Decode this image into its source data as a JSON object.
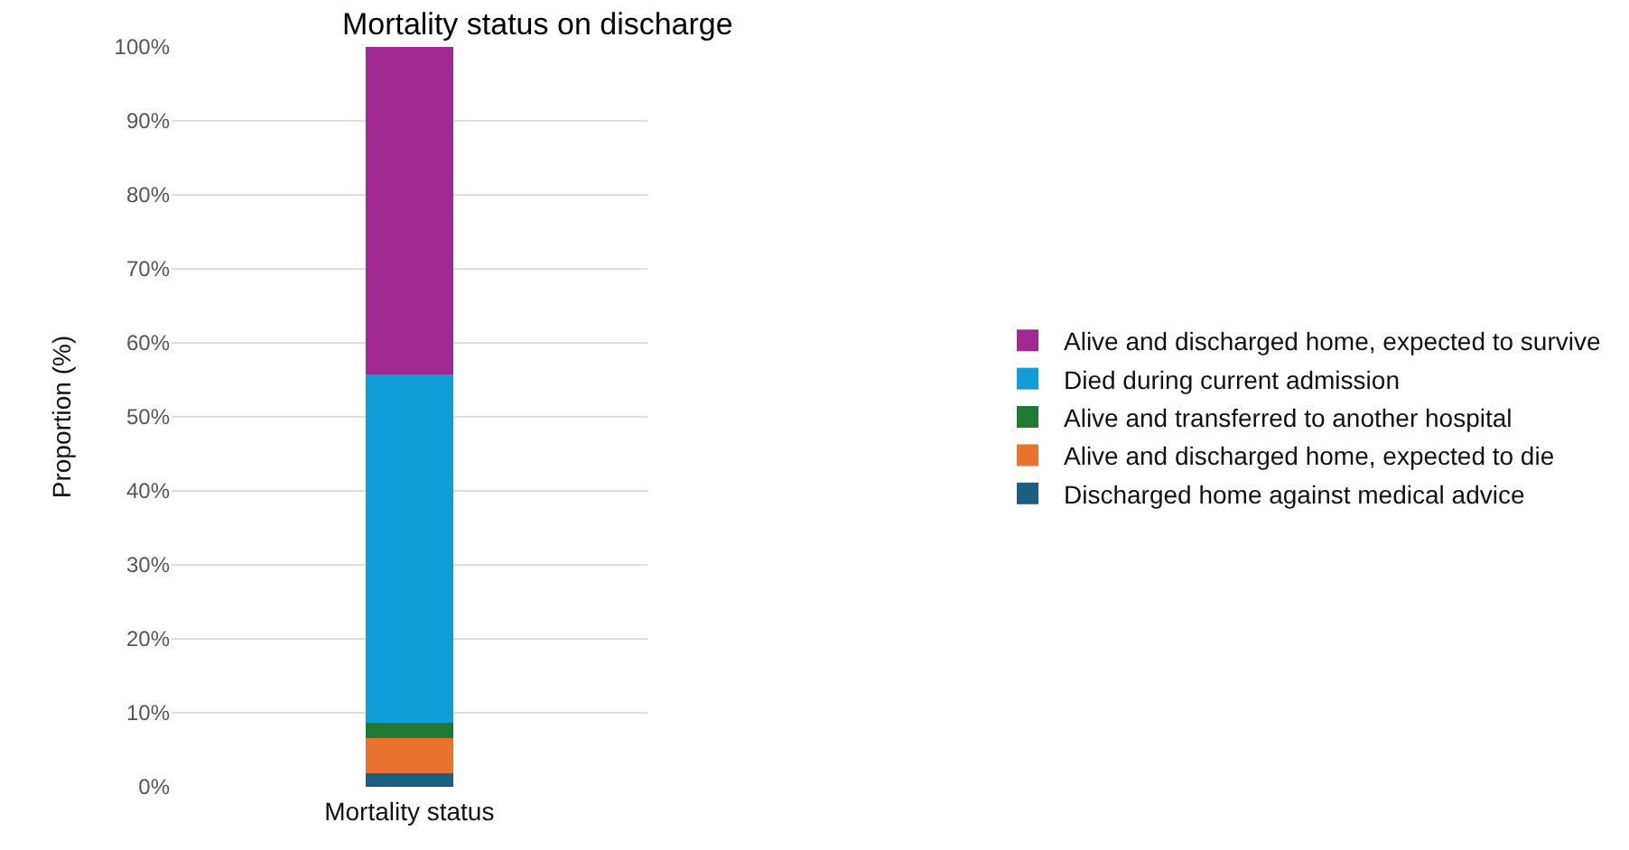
{
  "chart_data": {
    "type": "bar",
    "title": "Mortality status on discharge",
    "xlabel": "Mortality status",
    "ylabel": "Proportion (%)",
    "categories": [
      null
    ],
    "stacked": true,
    "series": [
      {
        "name": "Discharged home against medical advice",
        "color": "#1a5e80",
        "values": [
          1.8
        ]
      },
      {
        "name": "Alive and discharged home, expected to die",
        "color": "#e87230",
        "values": [
          4.8
        ]
      },
      {
        "name": "Alive and transferred to another hospital",
        "color": "#1e7a30",
        "values": [
          2.0
        ]
      },
      {
        "name": "Died during current admission",
        "color": "#119dd6",
        "values": [
          47.1
        ]
      },
      {
        "name": "Alive and discharged home, expected to survive",
        "color": "#a12a92",
        "values": [
          44.3
        ]
      }
    ],
    "ylim": [
      0,
      100
    ],
    "yticks": [
      {
        "value": 0,
        "label": "0%"
      },
      {
        "value": 10,
        "label": "10%"
      },
      {
        "value": 20,
        "label": "20%"
      },
      {
        "value": 30,
        "label": "30%"
      },
      {
        "value": 40,
        "label": "40%"
      },
      {
        "value": 50,
        "label": "50%"
      },
      {
        "value": 60,
        "label": "60%"
      },
      {
        "value": 70,
        "label": "70%"
      },
      {
        "value": 80,
        "label": "80%"
      },
      {
        "value": 90,
        "label": "90%"
      },
      {
        "value": 100,
        "label": "100%"
      }
    ],
    "grid": "y",
    "legend": "right"
  }
}
